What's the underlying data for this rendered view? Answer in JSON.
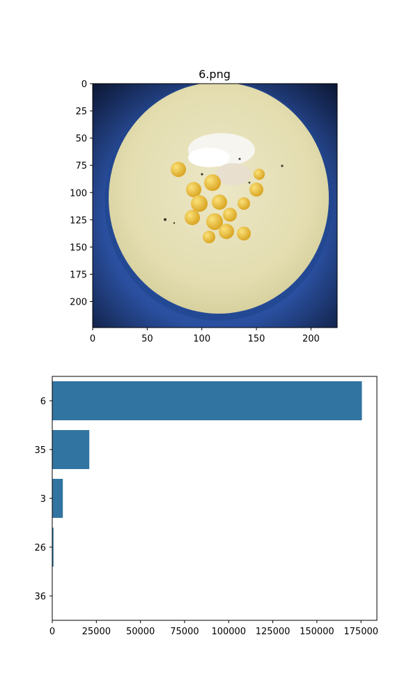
{
  "chart_data": [
    {
      "type": "image",
      "title": "6.png",
      "xlim": [
        0,
        224
      ],
      "ylim": [
        224,
        0
      ],
      "xticks": [
        0,
        50,
        100,
        150,
        200
      ],
      "yticks": [
        0,
        25,
        50,
        75,
        100,
        125,
        150,
        175,
        200
      ],
      "image_description": "bowl of creamy soup topped with corn kernels and sour cream on a blue plate"
    },
    {
      "type": "bar",
      "orientation": "horizontal",
      "categories": [
        "6",
        "35",
        "3",
        "26",
        "36"
      ],
      "values": [
        175500,
        21000,
        6000,
        700,
        100
      ],
      "xlim": [
        0,
        184000
      ],
      "xticks": [
        0,
        25000,
        50000,
        75000,
        100000,
        125000,
        150000,
        175000
      ],
      "color": "#3274a1"
    }
  ]
}
